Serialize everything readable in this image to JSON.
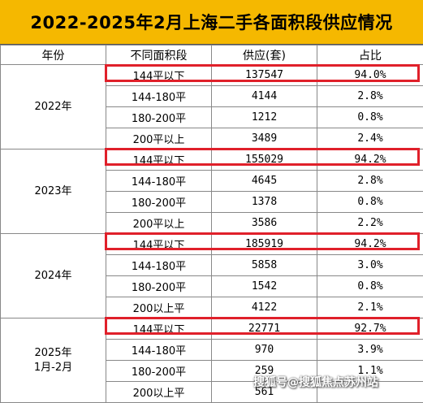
{
  "title": "2022-2025年2月上海二手各面积段供应情况",
  "headers": [
    "年份",
    "不同面积段",
    "供应(套)",
    "占比"
  ],
  "groups": [
    {
      "year": "2022年",
      "rows": [
        {
          "size": "144平以下",
          "supply": "137547",
          "share": "94.0%"
        },
        {
          "size": "144-180平",
          "supply": "4144",
          "share": "2.8%"
        },
        {
          "size": "180-200平",
          "supply": "1212",
          "share": "0.8%"
        },
        {
          "size": "200平以上",
          "supply": "3489",
          "share": "2.4%"
        }
      ]
    },
    {
      "year": "2023年",
      "rows": [
        {
          "size": "144平以下",
          "supply": "155029",
          "share": "94.2%"
        },
        {
          "size": "144-180平",
          "supply": "4645",
          "share": "2.8%"
        },
        {
          "size": "180-200平",
          "supply": "1378",
          "share": "0.8%"
        },
        {
          "size": "200平以上",
          "supply": "3586",
          "share": "2.2%"
        }
      ]
    },
    {
      "year": "2024年",
      "rows": [
        {
          "size": "144平以下",
          "supply": "185919",
          "share": "94.2%"
        },
        {
          "size": "144-180平",
          "supply": "5858",
          "share": "3.0%"
        },
        {
          "size": "180-200平",
          "supply": "1542",
          "share": "0.8%"
        },
        {
          "size": "200以上平",
          "supply": "4122",
          "share": "2.1%"
        }
      ]
    },
    {
      "year": "2025年\n1月-2月",
      "rows": [
        {
          "size": "144平以下",
          "supply": "22771",
          "share": "92.7%"
        },
        {
          "size": "144-180平",
          "supply": "970",
          "share": "3.9%"
        },
        {
          "size": "180-200平",
          "supply": "259",
          "share": "1.1%"
        },
        {
          "size": "200以上平",
          "supply": "561",
          "share": ""
        }
      ]
    }
  ],
  "watermark": "搜狐号@搜狐焦点苏州站",
  "colors": {
    "title_bg": "#F5B800",
    "highlight": "#E0202A"
  }
}
